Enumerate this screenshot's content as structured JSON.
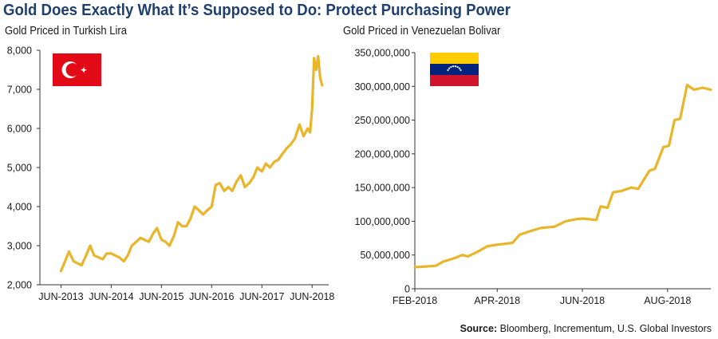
{
  "title": "Gold Does Exactly What It’s Supposed to Do: Protect Purchasing Power",
  "source_label": "Source:",
  "source_text": "Bloomberg, Incrementum, U.S. Global Investors",
  "line_color": "#e8b52b",
  "chart_data": [
    {
      "type": "line",
      "title": "Gold Priced in Turkish Lira",
      "flag": "turkey-flag",
      "ylim": [
        2000,
        8000
      ],
      "y_ticks": [
        2000,
        3000,
        4000,
        5000,
        6000,
        7000,
        8000
      ],
      "y_tick_labels": [
        "2,000",
        "3,000",
        "4,000",
        "5,000",
        "6,000",
        "7,000",
        "8,000"
      ],
      "x_tick_labels": [
        "JUN-2013",
        "JUN-2014",
        "JUN-2015",
        "JUN-2016",
        "JUN-2017",
        "JUN-2018"
      ],
      "xlim": [
        2013.0,
        2018.75
      ],
      "x_ticks": [
        2013.42,
        2014.42,
        2015.42,
        2016.42,
        2017.42,
        2018.42
      ],
      "series": [
        {
          "x": [
            2013.42,
            2013.5,
            2013.58,
            2013.67,
            2013.75,
            2013.83,
            2013.92,
            2014.0,
            2014.08,
            2014.17,
            2014.25,
            2014.33,
            2014.42,
            2014.5,
            2014.58,
            2014.67,
            2014.75,
            2014.83,
            2014.92,
            2015.0,
            2015.08,
            2015.17,
            2015.25,
            2015.33,
            2015.42,
            2015.5,
            2015.58,
            2015.67,
            2015.75,
            2015.83,
            2015.92,
            2016.0,
            2016.08,
            2016.17,
            2016.25,
            2016.33,
            2016.42,
            2016.5,
            2016.58,
            2016.67,
            2016.75,
            2016.83,
            2016.92,
            2017.0,
            2017.08,
            2017.17,
            2017.25,
            2017.33,
            2017.42,
            2017.5,
            2017.58,
            2017.67,
            2017.75,
            2017.83,
            2017.92,
            2018.0,
            2018.08,
            2018.17,
            2018.25,
            2018.33,
            2018.38,
            2018.42,
            2018.46,
            2018.5,
            2018.54,
            2018.58,
            2018.62
          ],
          "y": [
            2350,
            2600,
            2850,
            2600,
            2550,
            2500,
            2750,
            3000,
            2750,
            2700,
            2650,
            2800,
            2800,
            2750,
            2700,
            2600,
            2750,
            3000,
            3100,
            3200,
            3150,
            3100,
            3300,
            3450,
            3150,
            3100,
            3000,
            3250,
            3600,
            3500,
            3500,
            3700,
            4000,
            3900,
            3800,
            3900,
            4000,
            4550,
            4600,
            4400,
            4500,
            4400,
            4650,
            4800,
            4500,
            4600,
            4750,
            5000,
            4900,
            5100,
            5000,
            5150,
            5200,
            5350,
            5500,
            5600,
            5750,
            6100,
            5800,
            6000,
            5900,
            6500,
            7800,
            7500,
            7850,
            7300,
            7100
          ]
        }
      ]
    },
    {
      "type": "line",
      "title": "Gold Priced in Venezuelan Bolivar",
      "flag": "venezuela-flag",
      "ylim": [
        0,
        350000000
      ],
      "y_ticks": [
        0,
        50000000,
        100000000,
        150000000,
        200000000,
        250000000,
        300000000,
        350000000
      ],
      "y_tick_labels": [
        "0",
        "50,000,000",
        "100,000,000",
        "150,000,000",
        "200,000,000",
        "250,000,000",
        "300,000,000",
        "350,000,000"
      ],
      "x_tick_labels": [
        "FEB-2018",
        "APR-2018",
        "JUN-2018",
        "AUG-2018"
      ],
      "xlim": [
        0,
        212
      ],
      "x_ticks": [
        0,
        59,
        120,
        181
      ],
      "series": [
        {
          "x": [
            0,
            8,
            15,
            20,
            28,
            34,
            38,
            45,
            52,
            58,
            62,
            70,
            75,
            82,
            90,
            100,
            108,
            115,
            120,
            125,
            130,
            133,
            138,
            142,
            148,
            155,
            160,
            168,
            172,
            178,
            182,
            186,
            190,
            195,
            200,
            206,
            212
          ],
          "y": [
            32000000,
            33000000,
            34000000,
            40000000,
            45000000,
            50000000,
            48000000,
            55000000,
            63000000,
            65000000,
            66000000,
            68000000,
            80000000,
            85000000,
            90000000,
            92000000,
            100000000,
            103000000,
            104000000,
            103000000,
            102000000,
            122000000,
            120000000,
            143000000,
            145000000,
            150000000,
            148000000,
            175000000,
            178000000,
            210000000,
            212000000,
            250000000,
            252000000,
            302000000,
            295000000,
            298000000,
            295000000
          ]
        }
      ]
    }
  ]
}
